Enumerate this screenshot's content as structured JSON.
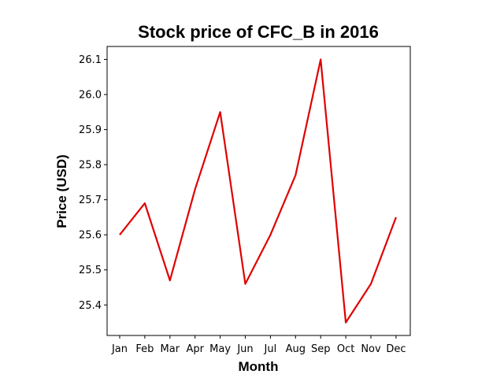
{
  "chart_data": {
    "type": "line",
    "title": "Stock price of CFC_B in 2016",
    "xlabel": "Month",
    "ylabel": "Price (USD)",
    "categories": [
      "Jan",
      "Feb",
      "Mar",
      "Apr",
      "May",
      "Jun",
      "Jul",
      "Aug",
      "Sep",
      "Oct",
      "Nov",
      "Dec"
    ],
    "series": [
      {
        "values": [
          25.6,
          25.69,
          25.47,
          25.73,
          25.95,
          25.46,
          25.6,
          25.77,
          26.1,
          25.35,
          25.46,
          25.65
        ],
        "color": "#e00000"
      }
    ],
    "yticks": [
      "25.4",
      "25.5",
      "25.6",
      "25.7",
      "25.8",
      "25.9",
      "26.0",
      "26.1"
    ],
    "ylim": [
      25.313,
      26.137
    ],
    "grid": false
  }
}
